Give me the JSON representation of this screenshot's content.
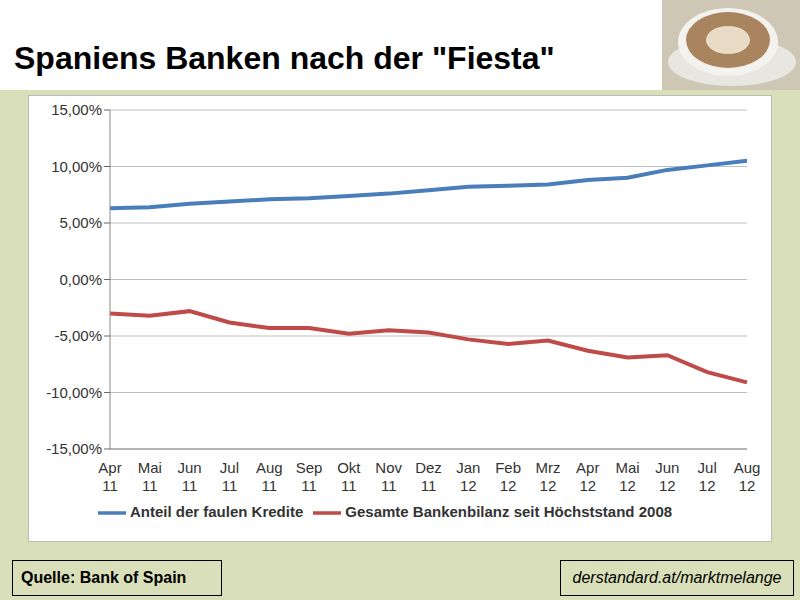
{
  "chart_data": {
    "type": "line",
    "title": "Spaniens Banken nach der \"Fiesta\"",
    "annotations": [
      "Quelle: Bank of Spain",
      "derstandard.at/marktmelange"
    ],
    "categories": [
      "Apr 11",
      "Mai 11",
      "Jun 11",
      "Jul 11",
      "Aug 11",
      "Sep 11",
      "Okt 11",
      "Nov 11",
      "Dez 11",
      "Jan 12",
      "Feb 12",
      "Mrz 12",
      "Apr 12",
      "Mai 12",
      "Jun 12",
      "Jul 12",
      "Aug 12"
    ],
    "series": [
      {
        "name": "Anteil der faulen Kredite",
        "color": "#4a7ebb",
        "values": [
          6.3,
          6.4,
          6.7,
          6.9,
          7.1,
          7.2,
          7.4,
          7.6,
          7.9,
          8.2,
          8.3,
          8.4,
          8.8,
          9.0,
          9.7,
          10.1,
          10.5
        ]
      },
      {
        "name": "Gesamte Bankenbilanz seit Höchststand 2008",
        "color": "#be4b48",
        "values": [
          -3.0,
          -3.2,
          -2.8,
          -3.8,
          -4.3,
          -4.3,
          -4.8,
          -4.5,
          -4.7,
          -5.3,
          -5.7,
          -5.4,
          -6.3,
          -6.9,
          -6.7,
          -8.2,
          -9.1
        ]
      }
    ],
    "ylim": [
      -15,
      15
    ],
    "yticks": [
      {
        "value": -15,
        "label": "-15,00%"
      },
      {
        "value": -10,
        "label": "-10,00%"
      },
      {
        "value": -5,
        "label": "-5,00%"
      },
      {
        "value": 0,
        "label": "0,00%"
      },
      {
        "value": 5,
        "label": "5,00%"
      },
      {
        "value": 10,
        "label": "10,00%"
      },
      {
        "value": 15,
        "label": "15,00%"
      }
    ],
    "grid": true,
    "legend": "bottom"
  }
}
